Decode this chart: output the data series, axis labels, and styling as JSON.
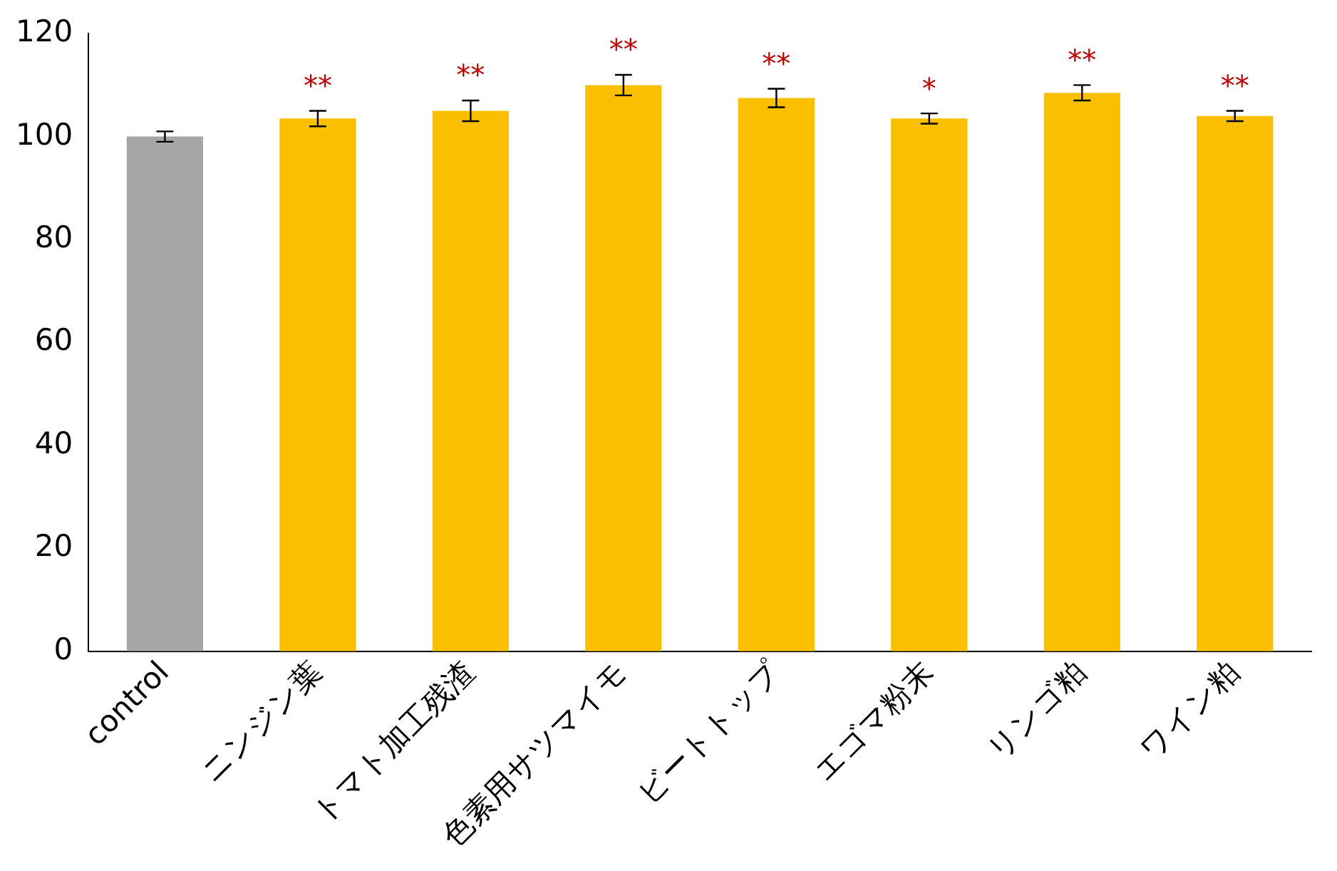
{
  "chart_data": {
    "type": "bar",
    "categories": [
      "control",
      "ニンジン葉",
      "トマト加工残渣",
      "色素用サツマイモ",
      "ビートトップ",
      "エゴマ粉末",
      "リンゴ粕",
      "ワイン粕"
    ],
    "values": [
      100,
      103.5,
      105,
      110,
      107.5,
      103.5,
      108.5,
      104
    ],
    "colors": [
      "#a6a6a6",
      "#fac000",
      "#fac000",
      "#fac000",
      "#fac000",
      "#fac000",
      "#fac000",
      "#fac000"
    ],
    "errors": [
      1,
      1.5,
      2,
      2,
      1.8,
      1,
      1.5,
      1
    ],
    "value_labels": [
      null,
      "**",
      "**",
      "**",
      "**",
      "*",
      "**",
      "**"
    ],
    "ylim": [
      0,
      120
    ],
    "yticks": [
      0,
      20,
      40,
      60,
      80,
      100,
      120
    ],
    "grid": false,
    "legend": false
  }
}
